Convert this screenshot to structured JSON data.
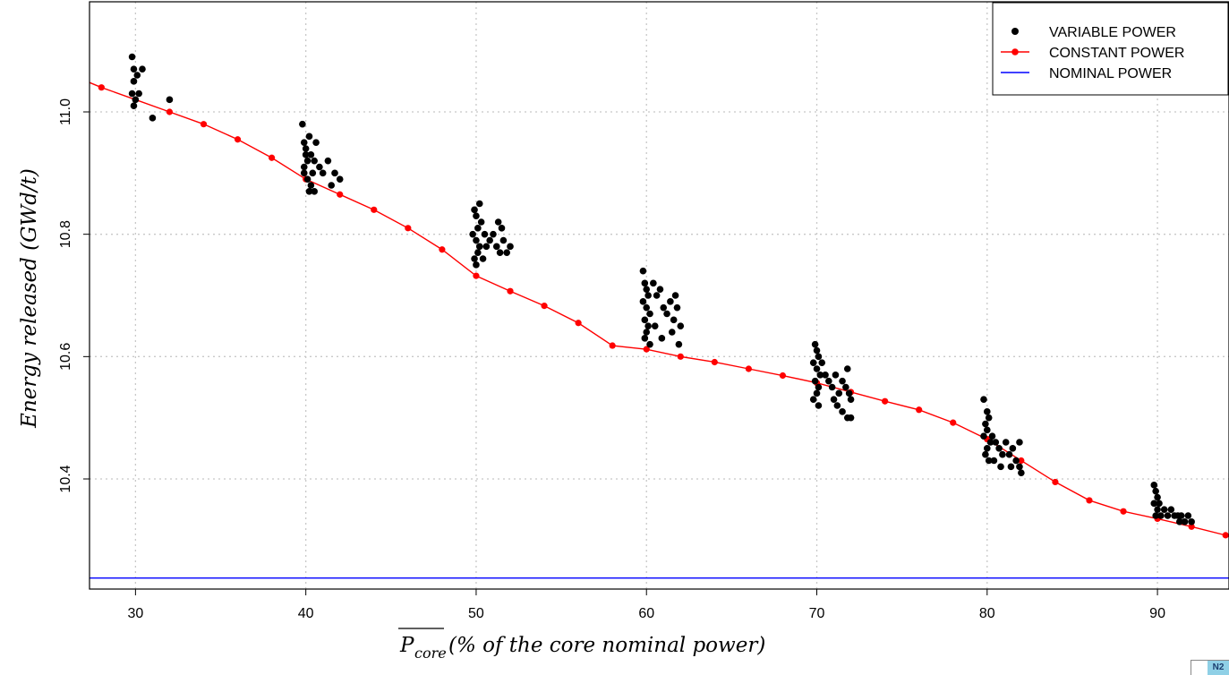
{
  "chart_data": {
    "type": "scatter",
    "xlabel": "(% of the core nominal power)",
    "xlabel_math": "P",
    "xlabel_math_sub": "core",
    "ylabel": "Energy released (GWd/t)",
    "xlim": [
      27.3,
      94.2
    ],
    "ylim": [
      10.22,
      11.18
    ],
    "x_ticks": [
      30,
      40,
      50,
      60,
      70,
      80,
      90
    ],
    "y_ticks": [
      10.4,
      10.6,
      10.8,
      11.0
    ],
    "grid": true,
    "legend_position": "top-right",
    "series": [
      {
        "name": "VARIABLE POWER",
        "kind": "points",
        "color": "#000000",
        "points": [
          [
            29.8,
            11.09
          ],
          [
            29.9,
            11.07
          ],
          [
            30.1,
            11.06
          ],
          [
            29.9,
            11.05
          ],
          [
            30.2,
            11.03
          ],
          [
            29.8,
            11.03
          ],
          [
            30.0,
            11.02
          ],
          [
            29.9,
            11.01
          ],
          [
            30.4,
            11.07
          ],
          [
            31.0,
            10.99
          ],
          [
            32.0,
            11.02
          ],
          [
            39.8,
            10.98
          ],
          [
            39.9,
            10.95
          ],
          [
            40.0,
            10.94
          ],
          [
            40.2,
            10.96
          ],
          [
            40.1,
            10.92
          ],
          [
            39.9,
            10.91
          ],
          [
            40.3,
            10.93
          ],
          [
            40.5,
            10.92
          ],
          [
            40.6,
            10.95
          ],
          [
            40.4,
            10.9
          ],
          [
            40.1,
            10.89
          ],
          [
            40.3,
            10.88
          ],
          [
            40.5,
            10.87
          ],
          [
            40.8,
            10.91
          ],
          [
            41.0,
            10.9
          ],
          [
            41.3,
            10.92
          ],
          [
            41.5,
            10.88
          ],
          [
            41.7,
            10.9
          ],
          [
            42.0,
            10.89
          ],
          [
            40.2,
            10.87
          ],
          [
            39.9,
            10.9
          ],
          [
            40.0,
            10.93
          ],
          [
            49.9,
            10.84
          ],
          [
            50.0,
            10.83
          ],
          [
            50.2,
            10.85
          ],
          [
            50.1,
            10.81
          ],
          [
            49.8,
            10.8
          ],
          [
            50.0,
            10.79
          ],
          [
            50.2,
            10.78
          ],
          [
            50.1,
            10.77
          ],
          [
            49.9,
            10.76
          ],
          [
            50.0,
            10.75
          ],
          [
            50.3,
            10.82
          ],
          [
            50.5,
            10.8
          ],
          [
            50.8,
            10.79
          ],
          [
            51.0,
            10.8
          ],
          [
            51.2,
            10.78
          ],
          [
            51.3,
            10.82
          ],
          [
            51.5,
            10.81
          ],
          [
            51.6,
            10.79
          ],
          [
            51.8,
            10.77
          ],
          [
            52.0,
            10.78
          ],
          [
            51.4,
            10.77
          ],
          [
            50.6,
            10.78
          ],
          [
            50.4,
            10.76
          ],
          [
            59.8,
            10.74
          ],
          [
            59.9,
            10.72
          ],
          [
            60.0,
            10.71
          ],
          [
            60.1,
            10.7
          ],
          [
            59.8,
            10.69
          ],
          [
            60.0,
            10.68
          ],
          [
            60.2,
            10.67
          ],
          [
            59.9,
            10.66
          ],
          [
            60.1,
            10.65
          ],
          [
            60.0,
            10.64
          ],
          [
            59.9,
            10.63
          ],
          [
            60.2,
            10.62
          ],
          [
            60.4,
            10.72
          ],
          [
            60.6,
            10.7
          ],
          [
            60.8,
            10.71
          ],
          [
            61.0,
            10.68
          ],
          [
            61.2,
            10.67
          ],
          [
            61.4,
            10.69
          ],
          [
            61.6,
            10.66
          ],
          [
            61.8,
            10.68
          ],
          [
            62.0,
            10.65
          ],
          [
            61.9,
            10.62
          ],
          [
            61.5,
            10.64
          ],
          [
            60.9,
            10.63
          ],
          [
            60.5,
            10.65
          ],
          [
            61.7,
            10.7
          ],
          [
            69.9,
            10.62
          ],
          [
            70.0,
            10.61
          ],
          [
            70.1,
            10.6
          ],
          [
            69.8,
            10.59
          ],
          [
            70.0,
            10.58
          ],
          [
            70.2,
            10.57
          ],
          [
            69.9,
            10.56
          ],
          [
            70.1,
            10.55
          ],
          [
            70.0,
            10.54
          ],
          [
            69.8,
            10.53
          ],
          [
            70.1,
            10.52
          ],
          [
            70.3,
            10.59
          ],
          [
            70.5,
            10.57
          ],
          [
            70.7,
            10.56
          ],
          [
            70.9,
            10.55
          ],
          [
            71.1,
            10.57
          ],
          [
            71.3,
            10.54
          ],
          [
            71.5,
            10.56
          ],
          [
            71.7,
            10.55
          ],
          [
            71.9,
            10.54
          ],
          [
            72.0,
            10.53
          ],
          [
            71.2,
            10.52
          ],
          [
            71.5,
            10.51
          ],
          [
            71.8,
            10.5
          ],
          [
            72.0,
            10.5
          ],
          [
            71.0,
            10.53
          ],
          [
            71.8,
            10.58
          ],
          [
            79.8,
            10.53
          ],
          [
            80.0,
            10.51
          ],
          [
            80.1,
            10.5
          ],
          [
            79.9,
            10.49
          ],
          [
            80.0,
            10.48
          ],
          [
            79.8,
            10.47
          ],
          [
            80.2,
            10.46
          ],
          [
            80.0,
            10.45
          ],
          [
            79.9,
            10.44
          ],
          [
            80.1,
            10.43
          ],
          [
            80.3,
            10.47
          ],
          [
            80.5,
            10.46
          ],
          [
            80.7,
            10.45
          ],
          [
            80.9,
            10.44
          ],
          [
            81.1,
            10.46
          ],
          [
            81.3,
            10.44
          ],
          [
            81.5,
            10.45
          ],
          [
            81.7,
            10.43
          ],
          [
            81.9,
            10.42
          ],
          [
            82.0,
            10.41
          ],
          [
            81.4,
            10.42
          ],
          [
            80.8,
            10.42
          ],
          [
            81.9,
            10.46
          ],
          [
            80.4,
            10.43
          ],
          [
            89.8,
            10.39
          ],
          [
            89.9,
            10.38
          ],
          [
            90.0,
            10.37
          ],
          [
            89.8,
            10.36
          ],
          [
            90.1,
            10.36
          ],
          [
            90.0,
            10.35
          ],
          [
            89.9,
            10.34
          ],
          [
            90.2,
            10.34
          ],
          [
            90.4,
            10.35
          ],
          [
            90.6,
            10.34
          ],
          [
            90.8,
            10.35
          ],
          [
            91.0,
            10.34
          ],
          [
            91.2,
            10.34
          ],
          [
            91.4,
            10.34
          ],
          [
            91.6,
            10.33
          ],
          [
            91.8,
            10.34
          ],
          [
            92.0,
            10.33
          ],
          [
            91.3,
            10.33
          ]
        ]
      },
      {
        "name": "CONSTANT POWER",
        "kind": "line-points",
        "color": "#ff0000",
        "x": [
          27.3,
          28,
          30,
          32,
          34,
          36,
          38,
          40,
          42,
          44,
          46,
          48,
          50,
          52,
          54,
          56,
          58,
          60,
          62,
          64,
          66,
          68,
          70,
          72,
          74,
          76,
          78,
          80,
          82,
          84,
          86,
          88,
          90,
          92,
          94,
          94.2
        ],
        "y": [
          11.048,
          11.04,
          11.02,
          11.0,
          10.98,
          10.955,
          10.925,
          10.89,
          10.865,
          10.84,
          10.81,
          10.775,
          10.732,
          10.707,
          10.683,
          10.655,
          10.618,
          10.612,
          10.6,
          10.591,
          10.58,
          10.569,
          10.557,
          10.542,
          10.527,
          10.513,
          10.492,
          10.465,
          10.43,
          10.395,
          10.365,
          10.347,
          10.335,
          10.322,
          10.308,
          10.306
        ],
        "marker_x": [
          28,
          30,
          32,
          34,
          36,
          38,
          40,
          42,
          44,
          46,
          48,
          50,
          52,
          54,
          56,
          58,
          60,
          62,
          64,
          66,
          68,
          70,
          72,
          74,
          76,
          78,
          80,
          82,
          84,
          86,
          88,
          90,
          92,
          94
        ],
        "marker_y": [
          11.04,
          11.02,
          11.0,
          10.98,
          10.955,
          10.925,
          10.89,
          10.865,
          10.84,
          10.81,
          10.775,
          10.732,
          10.707,
          10.683,
          10.655,
          10.618,
          10.612,
          10.6,
          10.591,
          10.58,
          10.569,
          10.557,
          10.542,
          10.527,
          10.513,
          10.492,
          10.465,
          10.43,
          10.395,
          10.365,
          10.347,
          10.335,
          10.322,
          10.308
        ]
      },
      {
        "name": "NOMINAL POWER",
        "kind": "hline",
        "color": "#0000ff",
        "y": 10.238
      }
    ]
  },
  "corner_tag": "N2"
}
